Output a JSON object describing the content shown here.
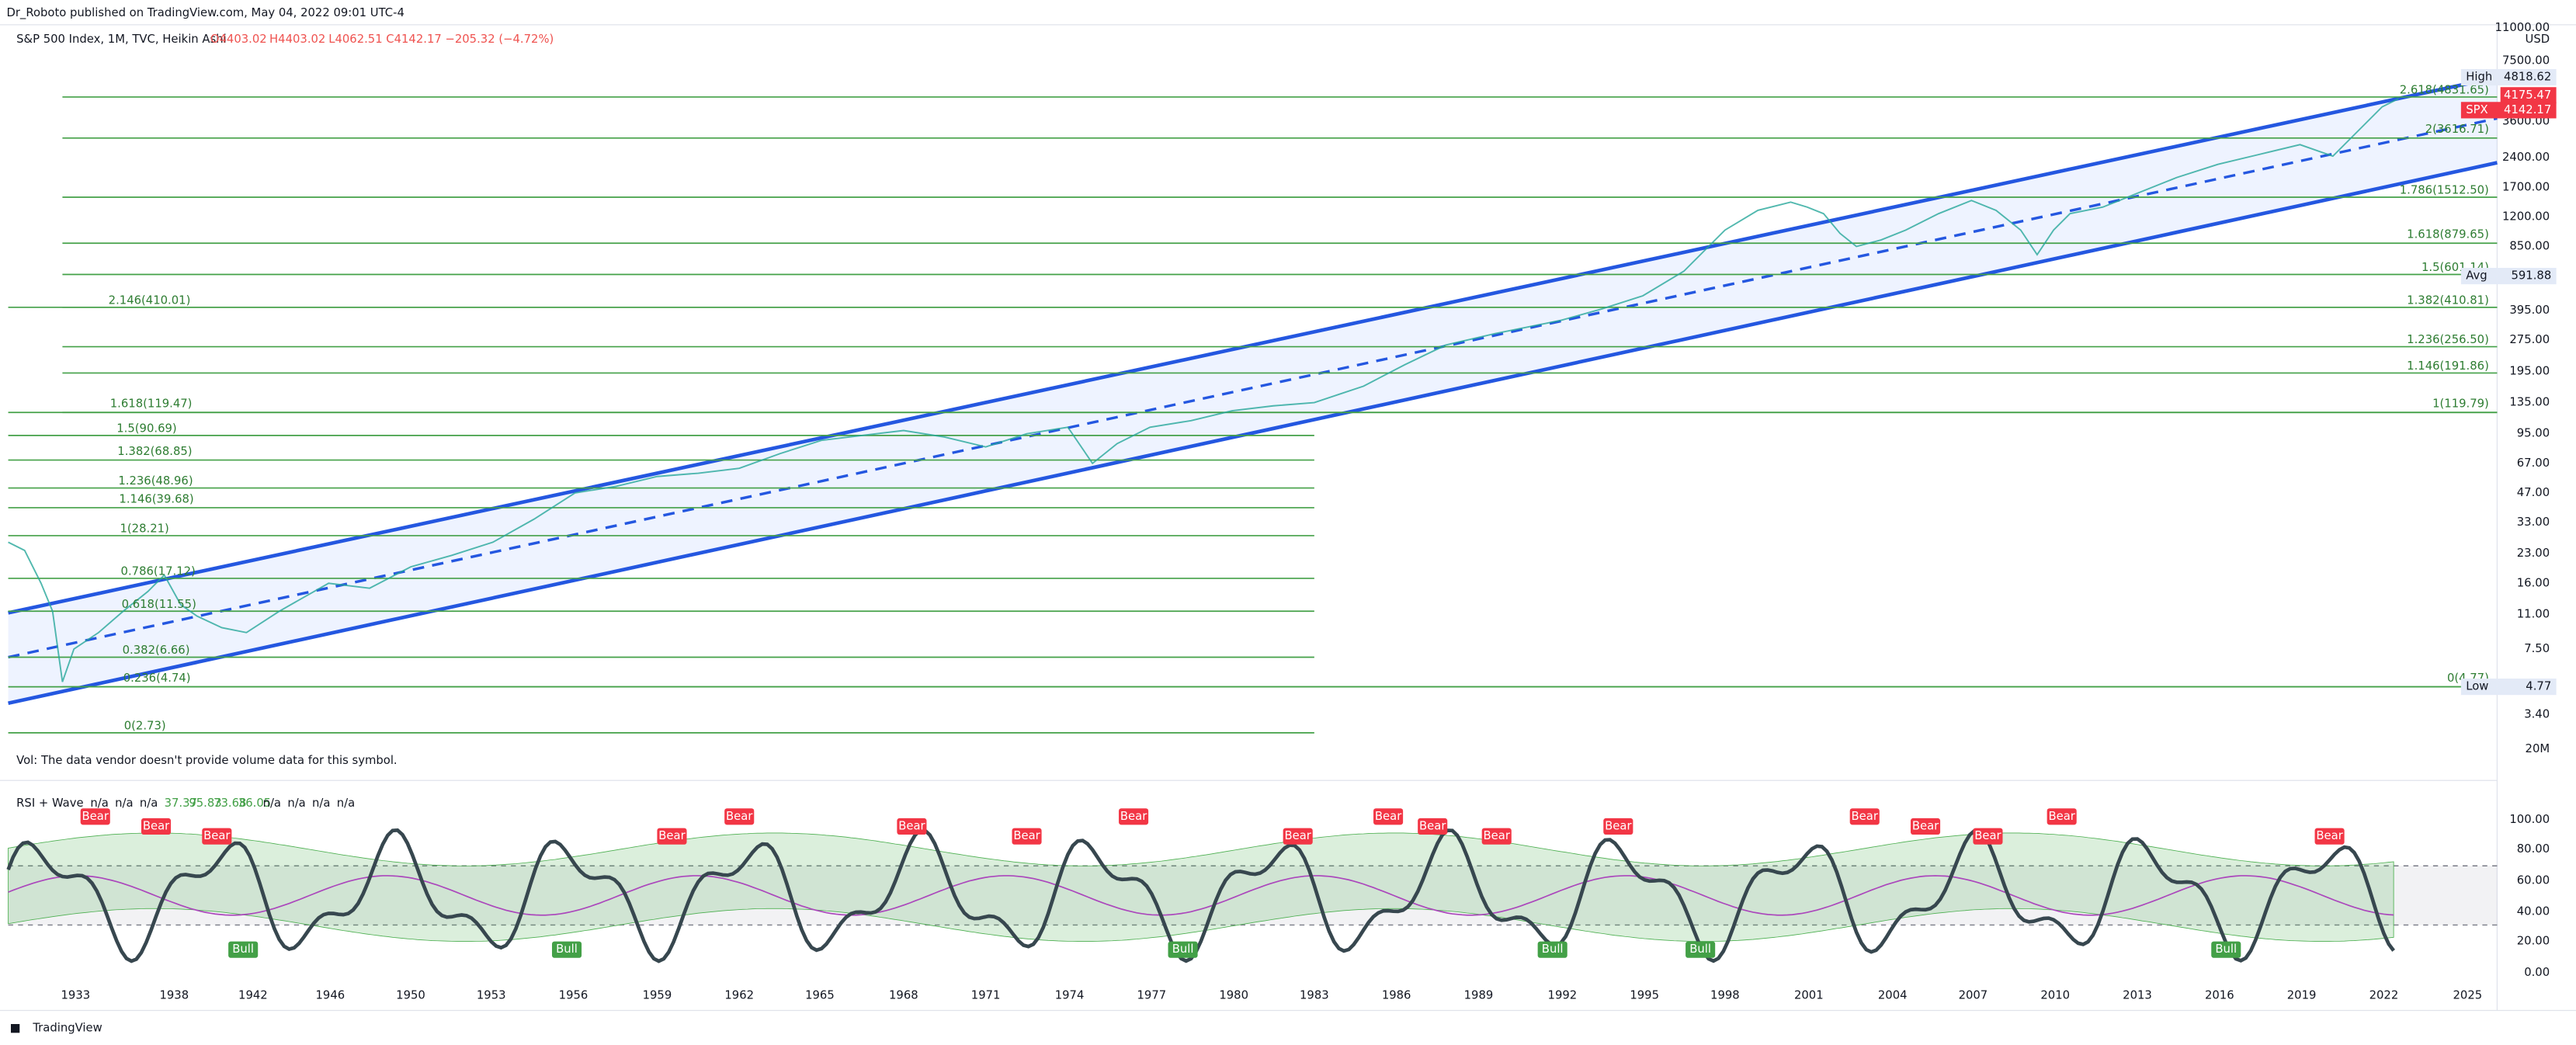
{
  "header": {
    "publisher": "Dr_Roboto published on TradingView.com, May 04, 2022 09:01 UTC-4",
    "symbol": "S&P 500 Index, 1M, TVC, Heikin Ashi",
    "open": "O4403.02",
    "high": "H4403.02",
    "low": "L4062.51",
    "close": "C4142.17",
    "change": "−205.32 (−4.72%)"
  },
  "price_axis": {
    "currency": "USD",
    "labels": [
      "11000.00",
      "7500.00",
      "3600.00",
      "2400.00",
      "1700.00",
      "1200.00",
      "850.00",
      "395.00",
      "275.00",
      "195.00",
      "135.00",
      "95.00",
      "67.00",
      "47.00",
      "33.00",
      "23.00",
      "16.00",
      "11.00",
      "7.50",
      "3.40",
      "20M"
    ],
    "badges": [
      {
        "name": "High",
        "value": "4818.62"
      },
      {
        "name": "",
        "value": "4175.47"
      },
      {
        "name": "SPX",
        "value": "4142.17"
      },
      {
        "name": "Avg",
        "value": "591.88"
      },
      {
        "name": "Low",
        "value": "4.77"
      }
    ]
  },
  "fib_right": [
    "2.618(4831.65)",
    "2(3616.71)",
    "1.786(1512.50)",
    "1.618(879.65)",
    "1.5(601.14)",
    "1.382(410.81)",
    "1.236(256.50)",
    "1.146(191.86)",
    "1(119.79)",
    "0(4.77)"
  ],
  "fib_left": [
    "2.146(410.01)",
    "1.618(119.47)",
    "1.5(90.69)",
    "1.382(68.85)",
    "1.236(48.96)",
    "1.146(39.68)",
    "1(28.21)",
    "0.786(17.12)",
    "0.618(11.55)",
    "0.382(6.66)",
    "0.236(4.74)",
    "0(2.73)"
  ],
  "volume_note": "Vol: The data vendor doesn't provide volume data for this symbol.",
  "indicator": {
    "name": "RSI + Wave",
    "values": [
      "n/a",
      "n/a",
      "n/a",
      "37.37",
      "95.83",
      "73.68",
      "36.05",
      "n/a",
      "n/a",
      "n/a",
      "n/a"
    ],
    "axis": [
      "100.00",
      "80.00",
      "60.00",
      "40.00",
      "20.00",
      "0.00"
    ],
    "signals": [
      "Bear",
      "Bear",
      "Bear",
      "Bull",
      "Bull",
      "Bear",
      "Bear",
      "Bear",
      "Bear",
      "Bear",
      "Bull",
      "Bear",
      "Bear",
      "Bear",
      "Bear",
      "Bull",
      "Bear",
      "Bull",
      "Bear",
      "Bear",
      "Bear",
      "Bear",
      "Bull",
      "Bear"
    ]
  },
  "time_axis": [
    "1933",
    "1938",
    "1942",
    "1946",
    "1950",
    "1953",
    "1956",
    "1959",
    "1962",
    "1965",
    "1968",
    "1971",
    "1974",
    "1977",
    "1980",
    "1983",
    "1986",
    "1989",
    "1992",
    "1995",
    "1998",
    "2001",
    "2004",
    "2007",
    "2010",
    "2013",
    "2016",
    "2019",
    "2022",
    "2025"
  ],
  "footer": "TradingView"
}
